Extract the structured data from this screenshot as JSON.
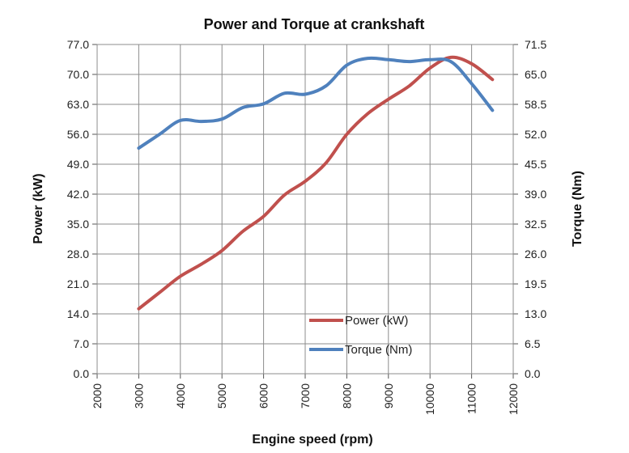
{
  "chart_data": {
    "type": "line",
    "title": "Power and Torque at crankshaft",
    "xlabel": "Engine speed (rpm)",
    "ylabel_left": "Power (kW)",
    "ylabel_right": "Torque (Nm)",
    "xlim": [
      2000,
      12000
    ],
    "ylim_left": [
      0,
      77
    ],
    "ylim_right": [
      0,
      71.5
    ],
    "x_ticks": [
      "2000",
      "3000",
      "4000",
      "5000",
      "6000",
      "7000",
      "8000",
      "9000",
      "10000",
      "11000",
      "12000"
    ],
    "y_left_ticks": [
      "0.0",
      "7.0",
      "14.0",
      "21.0",
      "28.0",
      "35.0",
      "42.0",
      "49.0",
      "56.0",
      "63.0",
      "70.0",
      "77.0"
    ],
    "y_right_ticks": [
      "0.0",
      "6.5",
      "13.0",
      "19.5",
      "26.0",
      "32.5",
      "39.0",
      "45.5",
      "52.0",
      "58.5",
      "65.0",
      "71.5"
    ],
    "grid": true,
    "legend_position": "bottom-center",
    "series": [
      {
        "name": "Power (kW)",
        "axis": "left",
        "color": "#C0504D",
        "x": [
          3000,
          3500,
          4000,
          4500,
          5000,
          5500,
          6000,
          6500,
          7000,
          7500,
          8000,
          8500,
          9000,
          9500,
          10000,
          10500,
          11000,
          11500
        ],
        "y": [
          15.2,
          19.0,
          22.8,
          25.6,
          28.8,
          33.3,
          36.8,
          41.8,
          45.0,
          49.3,
          56.0,
          60.8,
          64.2,
          67.3,
          71.5,
          74.0,
          72.5,
          68.8
        ]
      },
      {
        "name": "Torque (Nm)",
        "axis": "right",
        "color": "#4F81BD",
        "x": [
          3000,
          3500,
          4000,
          4500,
          5000,
          5500,
          6000,
          6500,
          7000,
          7500,
          8000,
          8500,
          9000,
          9500,
          10000,
          10500,
          11000,
          11500
        ],
        "y": [
          49.0,
          52.0,
          55.0,
          54.8,
          55.3,
          57.8,
          58.6,
          60.9,
          60.7,
          62.5,
          67.0,
          68.5,
          68.2,
          67.8,
          68.2,
          67.8,
          63.0,
          57.2
        ]
      }
    ]
  }
}
